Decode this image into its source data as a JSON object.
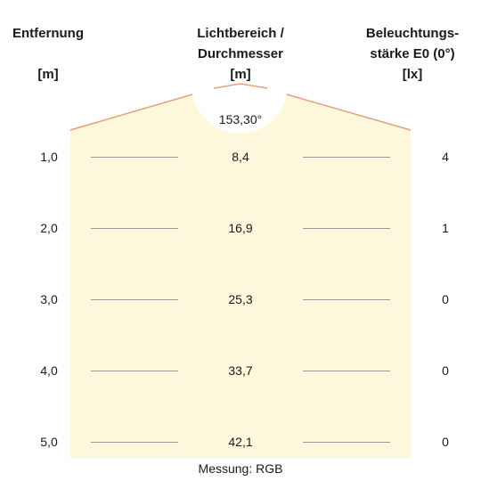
{
  "headers": {
    "distance_line1": "Entfernung",
    "distance_unit": "[m]",
    "diameter_line1": "Lichtbereich /",
    "diameter_line2": "Durchmesser",
    "diameter_unit": "[m]",
    "lux_line1": "Beleuchtungs-",
    "lux_line2": "stärke E0 (0°)",
    "lux_unit": "[lx]"
  },
  "beam_angle": "153,30°",
  "rows": [
    {
      "distance": "1,0",
      "diameter": "8,4",
      "lux": "4"
    },
    {
      "distance": "2,0",
      "diameter": "16,9",
      "lux": "1"
    },
    {
      "distance": "3,0",
      "diameter": "25,3",
      "lux": "0"
    },
    {
      "distance": "4,0",
      "diameter": "33,7",
      "lux": "0"
    },
    {
      "distance": "5,0",
      "diameter": "42,1",
      "lux": "0"
    }
  ],
  "footer": "Messung: RGB",
  "colors": {
    "beam_fill": "#fdf8dc",
    "beam_edge": "#e3a27b",
    "tick_line": "#9a9a9a"
  }
}
